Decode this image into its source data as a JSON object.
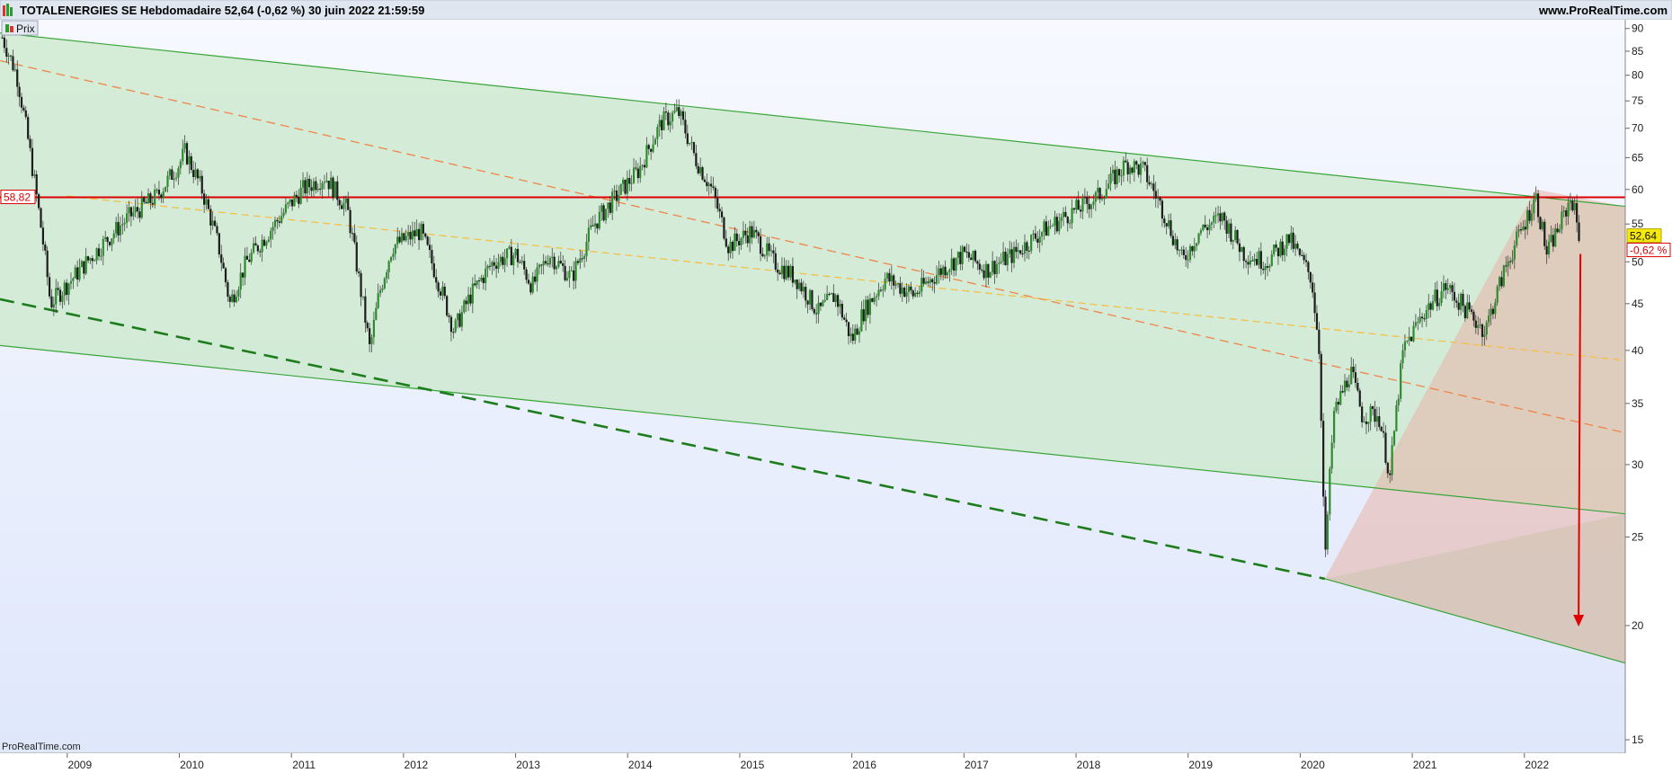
{
  "header": {
    "title": "TOTALENERGIES SE Hebdomadaire 52,64 (-0,62 %) 30 juin 2022 21:59:59",
    "site": "www.ProRealTime.com"
  },
  "legend": {
    "label": "Prix"
  },
  "footer": {
    "brand": "ProRealTime.com"
  },
  "badges": {
    "resistance": "58,82",
    "last_price": "52,64",
    "last_change": "-0,62 %"
  },
  "colors": {
    "candle_up": "#2e8b2e",
    "candle_down": "#1c1c1c",
    "channel_fill": "#c9e8c9",
    "channel_line": "#3aa53a",
    "resistance": "#dd0000",
    "trend_orange": "#f0844a",
    "trend_yellow": "#f4c048",
    "dashed_green": "#1d7d1d",
    "wedge_fill": "#e8b3a6",
    "arrow": "#e00000"
  },
  "chart_data": {
    "type": "candlestick",
    "y_scale": "log",
    "ylim": [
      14.5,
      92
    ],
    "xlim": [
      2008.4,
      2022.9
    ],
    "y_ticks": [
      15,
      20,
      25,
      30,
      35,
      40,
      45,
      50,
      55,
      60,
      65,
      70,
      75,
      80,
      85,
      90
    ],
    "x_ticks": [
      "2009",
      "2010",
      "2011",
      "2012",
      "2013",
      "2014",
      "2015",
      "2016",
      "2017",
      "2018",
      "2019",
      "2020",
      "2021",
      "2022"
    ],
    "price_path": [
      [
        2008.42,
        88
      ],
      [
        2008.55,
        80
      ],
      [
        2008.7,
        62
      ],
      [
        2008.85,
        45
      ],
      [
        2009.05,
        48
      ],
      [
        2009.3,
        52
      ],
      [
        2009.55,
        56
      ],
      [
        2009.8,
        59
      ],
      [
        2010.0,
        64
      ],
      [
        2010.05,
        66
      ],
      [
        2010.2,
        60
      ],
      [
        2010.35,
        52
      ],
      [
        2010.45,
        45
      ],
      [
        2010.6,
        50
      ],
      [
        2010.8,
        54
      ],
      [
        2011.1,
        60
      ],
      [
        2011.3,
        62
      ],
      [
        2011.5,
        57
      ],
      [
        2011.6,
        48
      ],
      [
        2011.7,
        40
      ],
      [
        2011.78,
        46
      ],
      [
        2011.9,
        52
      ],
      [
        2012.15,
        54
      ],
      [
        2012.3,
        48
      ],
      [
        2012.45,
        42
      ],
      [
        2012.6,
        46
      ],
      [
        2012.8,
        50
      ],
      [
        2013.0,
        51
      ],
      [
        2013.15,
        47
      ],
      [
        2013.3,
        51
      ],
      [
        2013.5,
        48
      ],
      [
        2013.7,
        55
      ],
      [
        2013.9,
        59
      ],
      [
        2014.1,
        63
      ],
      [
        2014.3,
        71
      ],
      [
        2014.45,
        73
      ],
      [
        2014.6,
        65
      ],
      [
        2014.75,
        60
      ],
      [
        2014.9,
        52
      ],
      [
        2015.1,
        54
      ],
      [
        2015.3,
        50
      ],
      [
        2015.5,
        48
      ],
      [
        2015.7,
        44
      ],
      [
        2015.85,
        46
      ],
      [
        2016.0,
        41
      ],
      [
        2016.1,
        44
      ],
      [
        2016.3,
        48
      ],
      [
        2016.55,
        46
      ],
      [
        2016.8,
        49
      ],
      [
        2017.0,
        51
      ],
      [
        2017.2,
        49
      ],
      [
        2017.45,
        51
      ],
      [
        2017.7,
        54
      ],
      [
        2017.9,
        56
      ],
      [
        2018.2,
        59
      ],
      [
        2018.45,
        64
      ],
      [
        2018.6,
        63
      ],
      [
        2018.8,
        56
      ],
      [
        2018.95,
        50
      ],
      [
        2019.1,
        54
      ],
      [
        2019.3,
        56
      ],
      [
        2019.5,
        51
      ],
      [
        2019.7,
        50
      ],
      [
        2019.9,
        53
      ],
      [
        2020.1,
        48
      ],
      [
        2020.17,
        40
      ],
      [
        2020.22,
        23
      ],
      [
        2020.3,
        34
      ],
      [
        2020.45,
        38
      ],
      [
        2020.55,
        34
      ],
      [
        2020.7,
        34
      ],
      [
        2020.8,
        29
      ],
      [
        2020.92,
        40
      ],
      [
        2021.1,
        44
      ],
      [
        2021.3,
        47
      ],
      [
        2021.5,
        44
      ],
      [
        2021.65,
        42
      ],
      [
        2021.85,
        50
      ],
      [
        2022.0,
        55
      ],
      [
        2022.1,
        59
      ],
      [
        2022.2,
        51
      ],
      [
        2022.35,
        56
      ],
      [
        2022.42,
        59
      ],
      [
        2022.5,
        52.64
      ]
    ],
    "resistance": {
      "value": 58.82,
      "label": "58,82"
    },
    "channel": {
      "upper": [
        [
          2008.4,
          89
        ],
        [
          2022.9,
          57.5
        ]
      ],
      "middle_low": [
        [
          2008.4,
          40.5
        ],
        [
          2022.9,
          26.5
        ]
      ],
      "bottom": [
        [
          2020.22,
          22.5
        ],
        [
          2022.9,
          18.2
        ]
      ]
    },
    "dashed_support": [
      [
        2008.4,
        45.5
      ],
      [
        2020.22,
        22.5
      ]
    ],
    "trend_orange": [
      [
        2008.4,
        83
      ],
      [
        2022.9,
        32.5
      ]
    ],
    "trend_yellow": [
      [
        2009.0,
        59
      ],
      [
        2022.9,
        39
      ]
    ],
    "wedge": [
      [
        2020.22,
        22.5
      ],
      [
        2022.1,
        60
      ],
      [
        2022.42,
        59
      ],
      [
        2022.9,
        57.5
      ],
      [
        2022.9,
        18.2
      ]
    ],
    "target_arrow": {
      "x": 2022.5,
      "from": 51,
      "to": 20
    },
    "last": {
      "value": 52.64,
      "change": "-0,62 %"
    }
  }
}
